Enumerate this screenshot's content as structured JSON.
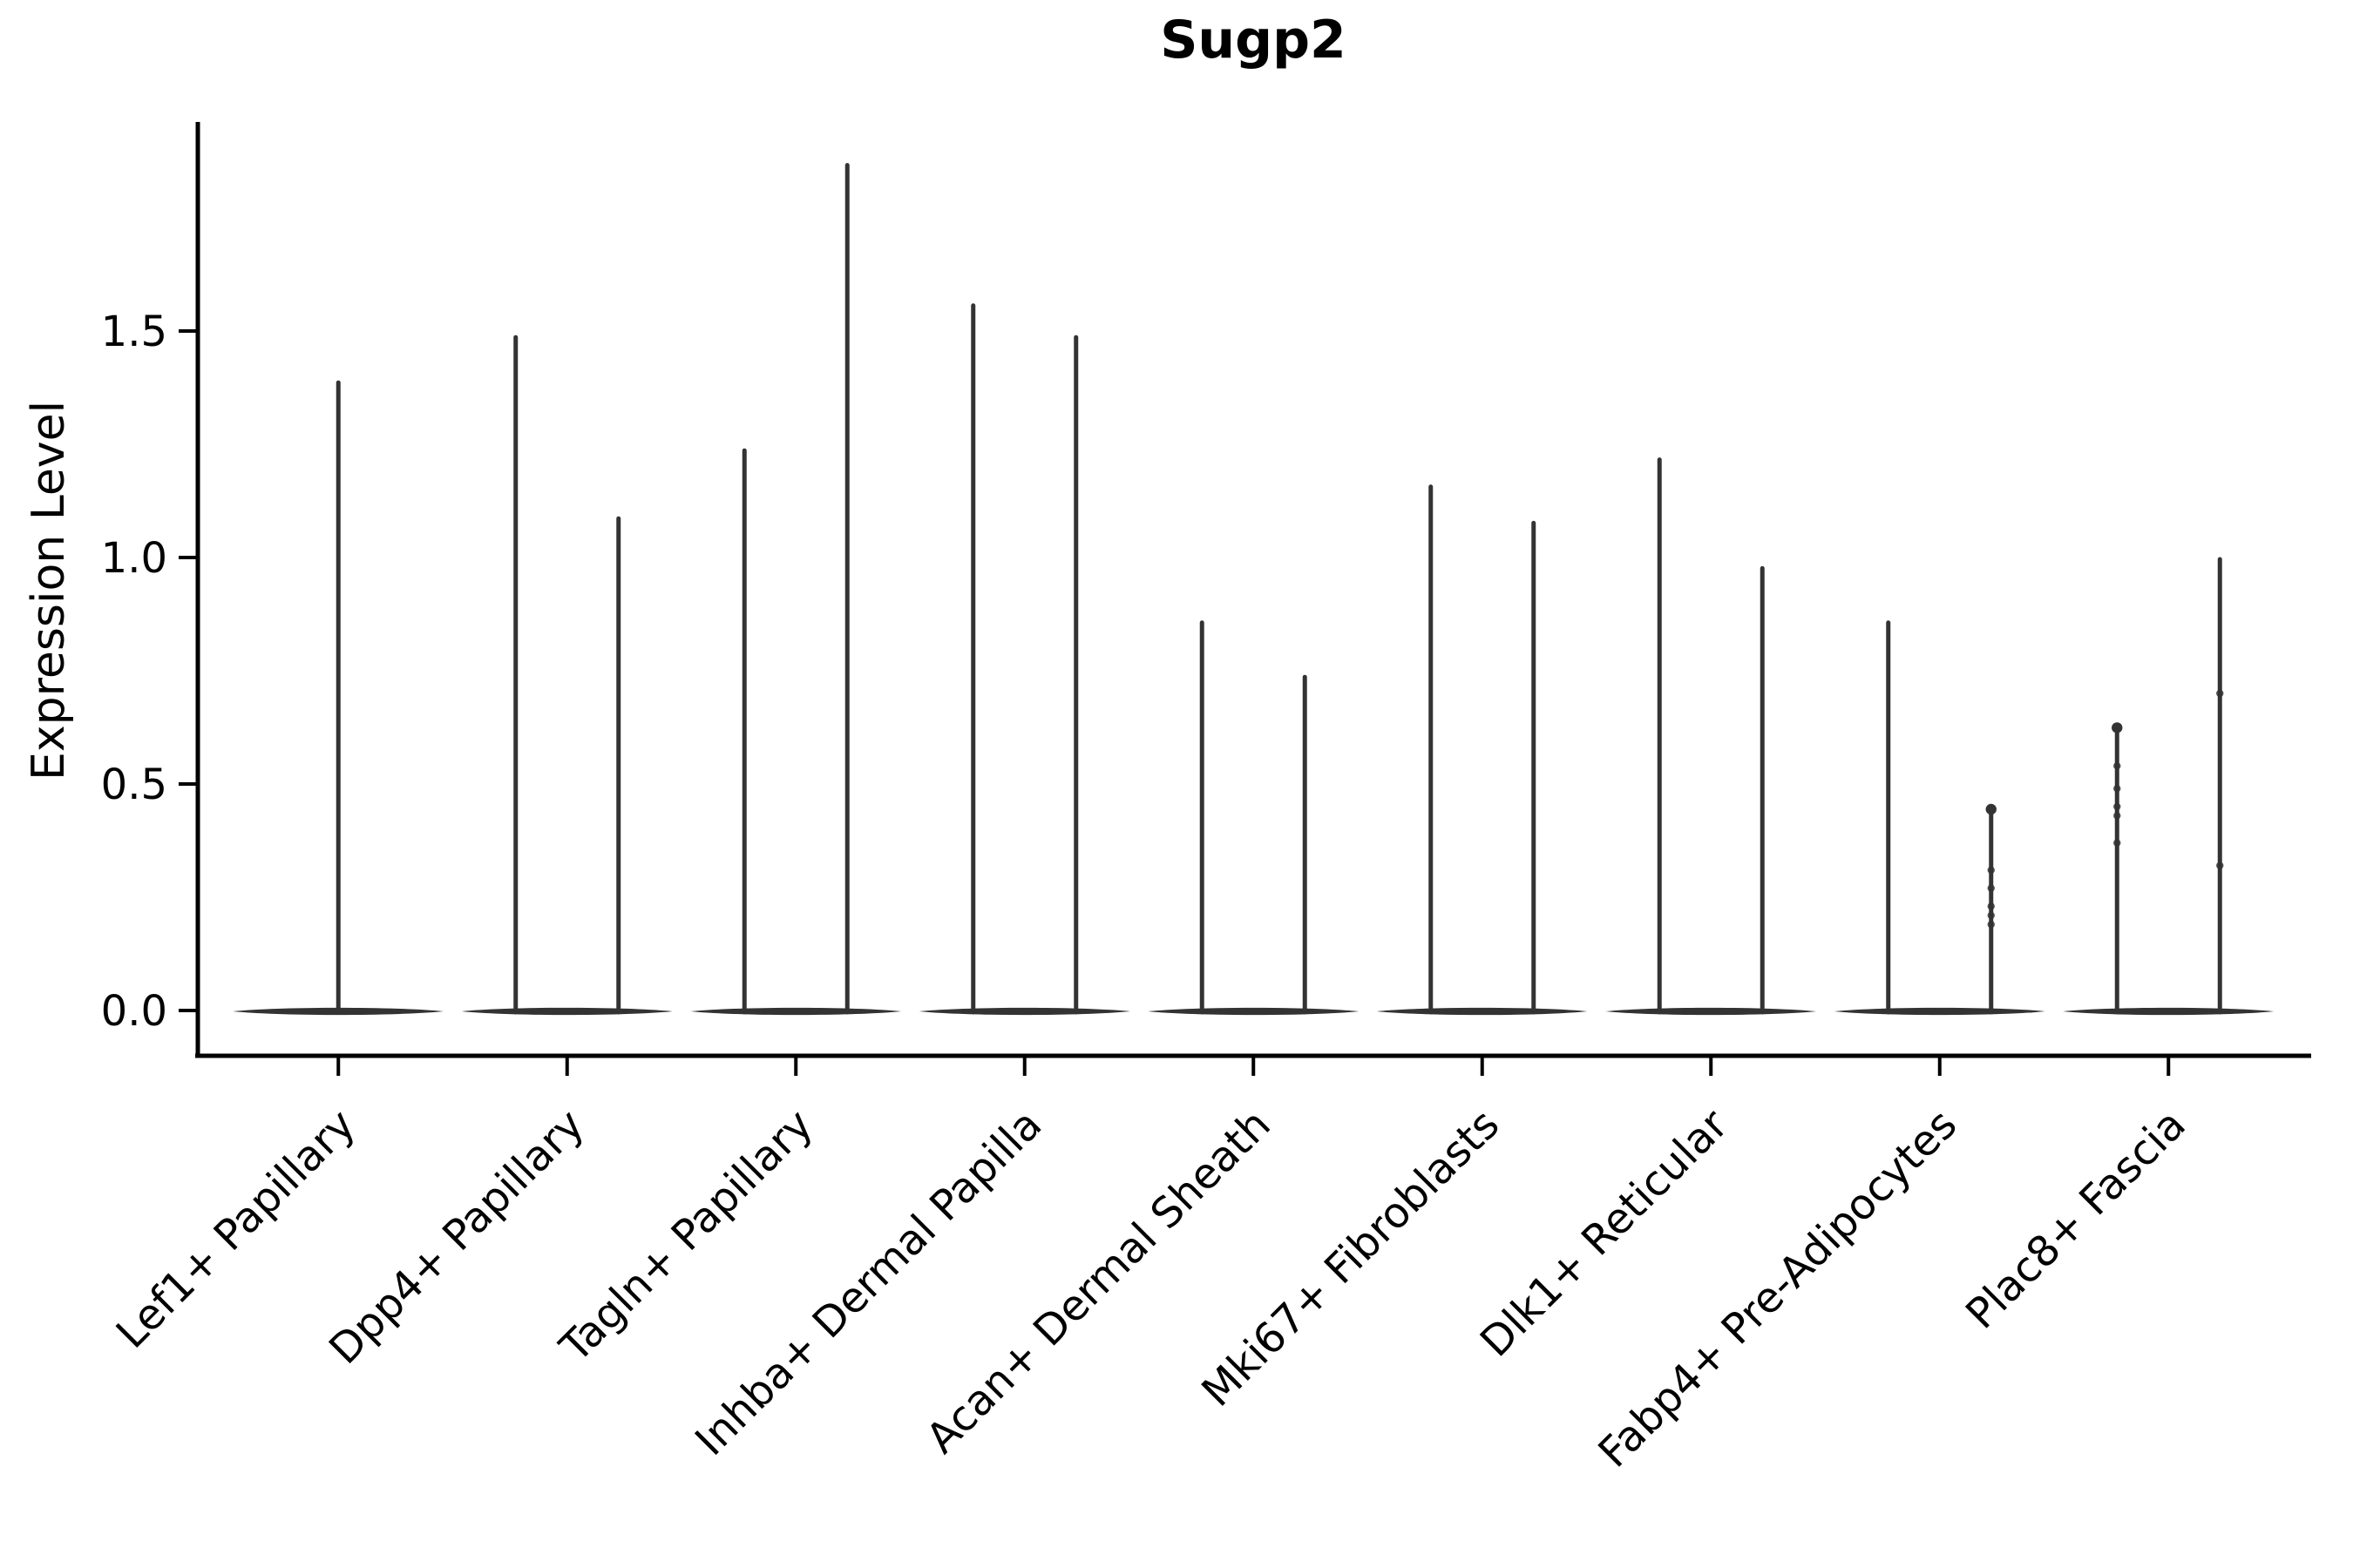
{
  "figure": {
    "background": "#ffffff"
  },
  "chart_data": {
    "type": "violin",
    "title": "Sugp2",
    "xlabel": "",
    "ylabel": "Expression Level",
    "ylim": [
      -0.1,
      1.96
    ],
    "yticks": [
      0.0,
      0.5,
      1.0,
      1.5
    ],
    "ytick_labels": [
      "0.0",
      "0.5",
      "1.0",
      "1.5"
    ],
    "grid": false,
    "legend": "none",
    "violin_color": "#333333",
    "axis_color": "#000000",
    "body_shape": "collapsed-flat-at-zero",
    "categories": [
      "Lef1+ Papillary",
      "Dpp4+ Papillary",
      "Tagln+ Papillary",
      "Inhba+ Dermal Papilla",
      "Acan+ Dermal Sheath",
      "Mki67+ Fibroblasts",
      "Dlk1+ Reticular",
      "Fabp4+ Pre-Adipocytes",
      "Plac8+ Fascia"
    ],
    "series": [
      {
        "category": "Lef1+ Papillary",
        "violins": [
          {
            "side": "center",
            "min": 0.0,
            "max": 1.39,
            "cap_dot": false,
            "points": []
          }
        ]
      },
      {
        "category": "Dpp4+ Papillary",
        "violins": [
          {
            "side": "left",
            "min": 0.0,
            "max": 1.49,
            "cap_dot": false,
            "points": []
          },
          {
            "side": "right",
            "min": 0.0,
            "max": 1.09,
            "cap_dot": false,
            "points": []
          }
        ]
      },
      {
        "category": "Tagln+ Papillary",
        "violins": [
          {
            "side": "left",
            "min": 0.0,
            "max": 1.24,
            "cap_dot": false,
            "points": []
          },
          {
            "side": "right",
            "min": 0.0,
            "max": 1.87,
            "cap_dot": false,
            "points": []
          }
        ]
      },
      {
        "category": "Inhba+ Dermal Papilla",
        "violins": [
          {
            "side": "left",
            "min": 0.0,
            "max": 1.56,
            "cap_dot": false,
            "points": []
          },
          {
            "side": "right",
            "min": 0.0,
            "max": 1.49,
            "cap_dot": false,
            "points": []
          }
        ]
      },
      {
        "category": "Acan+ Dermal Sheath",
        "violins": [
          {
            "side": "left",
            "min": 0.0,
            "max": 0.86,
            "cap_dot": false,
            "points": []
          },
          {
            "side": "right",
            "min": 0.0,
            "max": 0.74,
            "cap_dot": false,
            "points": []
          }
        ]
      },
      {
        "category": "Mki67+ Fibroblasts",
        "violins": [
          {
            "side": "left",
            "min": 0.0,
            "max": 1.16,
            "cap_dot": false,
            "points": []
          },
          {
            "side": "right",
            "min": 0.0,
            "max": 1.08,
            "cap_dot": false,
            "points": []
          }
        ]
      },
      {
        "category": "Dlk1+ Reticular",
        "violins": [
          {
            "side": "left",
            "min": 0.0,
            "max": 1.22,
            "cap_dot": false,
            "points": []
          },
          {
            "side": "right",
            "min": 0.0,
            "max": 0.98,
            "cap_dot": false,
            "points": []
          }
        ]
      },
      {
        "category": "Fabp4+ Pre-Adipocytes",
        "violins": [
          {
            "side": "left",
            "min": 0.0,
            "max": 0.86,
            "cap_dot": false,
            "points": []
          },
          {
            "side": "right",
            "min": 0.0,
            "max": 0.45,
            "cap_dot": true,
            "points": [
              0.31,
              0.27,
              0.23,
              0.21,
              0.19
            ]
          }
        ]
      },
      {
        "category": "Plac8+ Fascia",
        "violins": [
          {
            "side": "left",
            "min": 0.0,
            "max": 0.63,
            "cap_dot": true,
            "points": [
              0.54,
              0.49,
              0.45,
              0.43,
              0.37
            ]
          },
          {
            "side": "right",
            "min": 0.0,
            "max": 1.0,
            "cap_dot": false,
            "points": [
              0.7,
              0.32
            ]
          }
        ]
      }
    ]
  }
}
